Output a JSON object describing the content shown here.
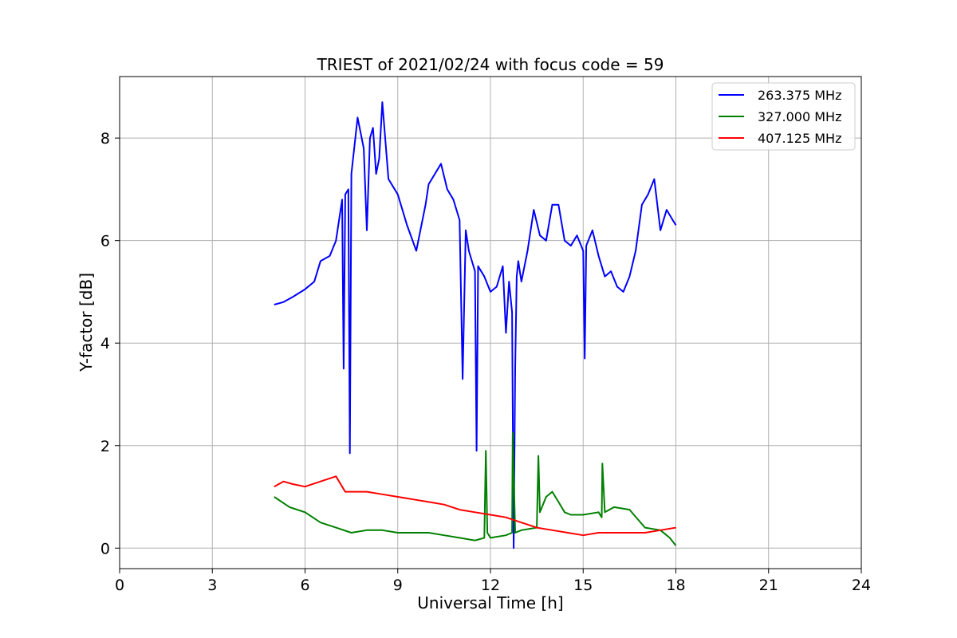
{
  "chart_data": {
    "type": "line",
    "title": "TRIEST of 2021/02/24 with focus code = 59",
    "xlabel": "Universal Time [h]",
    "ylabel": "Y-factor [dB]",
    "xlim": [
      0,
      24
    ],
    "ylim": [
      -0.4,
      9.2
    ],
    "xticks": [
      0,
      3,
      6,
      9,
      12,
      15,
      18,
      21,
      24
    ],
    "yticks": [
      0,
      2,
      4,
      6,
      8
    ],
    "grid": true,
    "legend_position": "top-right",
    "series": [
      {
        "name": "263.375 MHz",
        "color": "#0000ff",
        "x": [
          5.0,
          5.3,
          5.6,
          6.0,
          6.3,
          6.5,
          6.8,
          7.0,
          7.2,
          7.25,
          7.3,
          7.4,
          7.45,
          7.5,
          7.7,
          7.9,
          8.0,
          8.1,
          8.2,
          8.3,
          8.4,
          8.5,
          8.7,
          9.0,
          9.3,
          9.6,
          9.9,
          10.0,
          10.2,
          10.4,
          10.6,
          10.8,
          11.0,
          11.1,
          11.2,
          11.3,
          11.5,
          11.55,
          11.6,
          11.8,
          12.0,
          12.2,
          12.4,
          12.5,
          12.6,
          12.7,
          12.75,
          12.8,
          12.85,
          12.9,
          13.0,
          13.2,
          13.4,
          13.6,
          13.8,
          14.0,
          14.2,
          14.4,
          14.6,
          14.8,
          15.0,
          15.05,
          15.1,
          15.3,
          15.5,
          15.7,
          15.9,
          16.1,
          16.3,
          16.5,
          16.7,
          16.9,
          17.1,
          17.3,
          17.5,
          17.7,
          17.9,
          18.0
        ],
        "y": [
          4.75,
          4.8,
          4.9,
          5.05,
          5.2,
          5.6,
          5.7,
          6.0,
          6.8,
          3.5,
          6.9,
          7.0,
          1.85,
          7.3,
          8.4,
          7.8,
          6.2,
          8.0,
          8.2,
          7.3,
          7.6,
          8.7,
          7.2,
          6.9,
          6.3,
          5.8,
          6.7,
          7.1,
          7.3,
          7.5,
          7.0,
          6.8,
          6.4,
          3.3,
          6.2,
          5.8,
          5.4,
          1.9,
          5.5,
          5.3,
          5.0,
          5.1,
          5.5,
          4.2,
          5.2,
          4.6,
          0.0,
          3.5,
          5.3,
          5.6,
          5.2,
          5.8,
          6.6,
          6.1,
          6.0,
          6.7,
          6.7,
          6.0,
          5.9,
          6.1,
          5.8,
          3.7,
          5.9,
          6.2,
          5.7,
          5.3,
          5.4,
          5.1,
          5.0,
          5.3,
          5.8,
          6.7,
          6.9,
          7.2,
          6.2,
          6.6,
          6.4,
          6.3
        ]
      },
      {
        "name": "327.000 MHz",
        "color": "#008000",
        "x": [
          5.0,
          5.5,
          6.0,
          6.5,
          7.0,
          7.5,
          8.0,
          8.5,
          9.0,
          9.5,
          10.0,
          10.5,
          11.0,
          11.5,
          11.8,
          11.85,
          11.9,
          12.0,
          12.5,
          12.7,
          12.72,
          12.8,
          13.0,
          13.5,
          13.55,
          13.6,
          13.8,
          14.0,
          14.2,
          14.4,
          14.6,
          15.0,
          15.5,
          15.6,
          15.62,
          15.7,
          16.0,
          16.5,
          17.0,
          17.5,
          17.8,
          18.0
        ],
        "y": [
          1.0,
          0.8,
          0.7,
          0.5,
          0.4,
          0.3,
          0.35,
          0.35,
          0.3,
          0.3,
          0.3,
          0.25,
          0.2,
          0.15,
          0.2,
          1.9,
          0.3,
          0.2,
          0.25,
          0.3,
          2.25,
          0.3,
          0.35,
          0.4,
          1.8,
          0.7,
          1.0,
          1.1,
          0.9,
          0.7,
          0.65,
          0.65,
          0.7,
          0.6,
          1.65,
          0.7,
          0.8,
          0.75,
          0.4,
          0.35,
          0.2,
          0.05
        ]
      },
      {
        "name": "407.125 MHz",
        "color": "#ff0000",
        "x": [
          5.0,
          5.3,
          5.6,
          6.0,
          6.5,
          7.0,
          7.3,
          7.5,
          8.0,
          8.5,
          9.0,
          9.5,
          10.0,
          10.5,
          11.0,
          11.5,
          12.0,
          12.5,
          13.0,
          13.5,
          14.0,
          14.5,
          15.0,
          15.5,
          16.0,
          16.5,
          17.0,
          17.5,
          18.0
        ],
        "y": [
          1.2,
          1.3,
          1.25,
          1.2,
          1.3,
          1.4,
          1.1,
          1.1,
          1.1,
          1.05,
          1.0,
          0.95,
          0.9,
          0.85,
          0.75,
          0.7,
          0.65,
          0.6,
          0.5,
          0.4,
          0.35,
          0.3,
          0.25,
          0.3,
          0.3,
          0.3,
          0.3,
          0.35,
          0.4
        ]
      }
    ]
  }
}
